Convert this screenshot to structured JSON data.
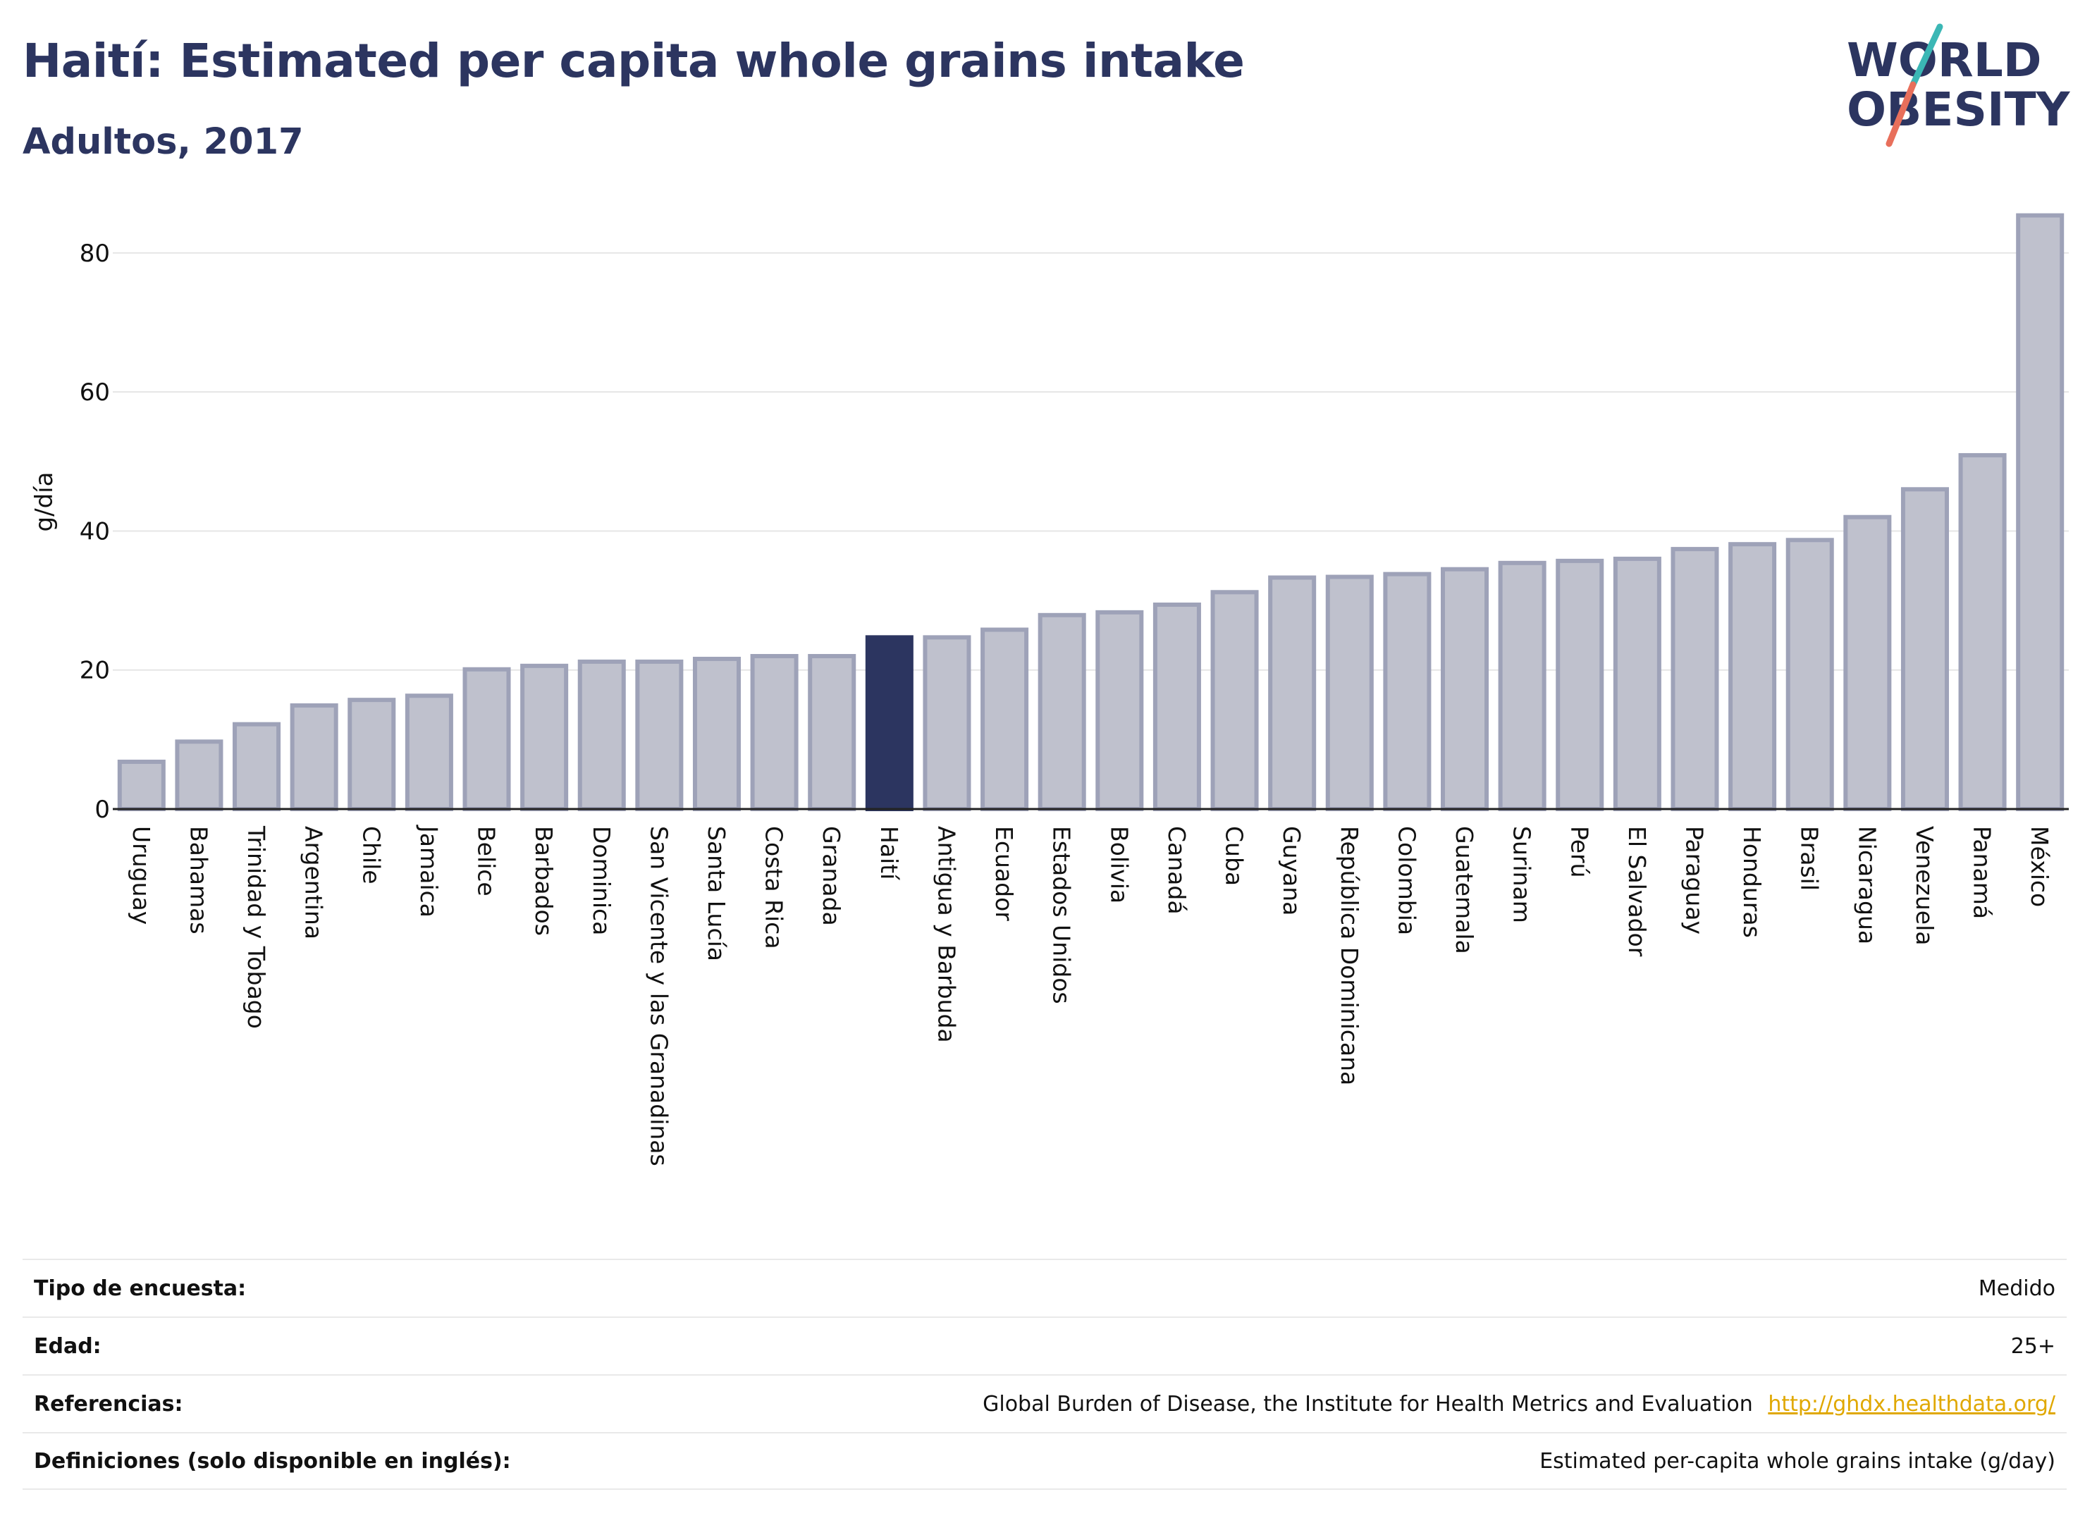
{
  "header": {
    "title": "Haití: Estimated per capita whole grains intake",
    "subtitle": "Adultos, 2017"
  },
  "logo": {
    "line1": "WORLD",
    "line2": "OBESITY"
  },
  "colors": {
    "highlight": "#2c3560",
    "bar_fill": "#bfc1cd",
    "bar_stroke": "#9ea2b8",
    "grid": "#e6e6e6",
    "logo_text": "#2c3560",
    "logo_teal": "#3bb7b5",
    "logo_coral": "#e86f5b"
  },
  "chart_data": {
    "type": "bar",
    "ylabel": "g/día",
    "ylim": [
      0,
      88
    ],
    "yticks": [
      0,
      20,
      40,
      60,
      80
    ],
    "grid": true,
    "highlight": "Haití",
    "categories": [
      "Uruguay",
      "Bahamas",
      "Trinidad y Tobago",
      "Argentina",
      "Chile",
      "Jamaica",
      "Belice",
      "Barbados",
      "Dominica",
      "San Vicente y las Granadinas",
      "Santa Lucía",
      "Costa Rica",
      "Granada",
      "Haití",
      "Antigua y Barbuda",
      "Ecuador",
      "Estados Unidos",
      "Bolivia",
      "Canadá",
      "Cuba",
      "Guyana",
      "República Dominicana",
      "Colombia",
      "Guatemala",
      "Surinam",
      "Perú",
      "El Salvador",
      "Paraguay",
      "Honduras",
      "Brasil",
      "Nicaragua",
      "Venezuela",
      "Panamá",
      "México"
    ],
    "values": [
      6.8,
      9.7,
      12.2,
      14.9,
      15.7,
      16.3,
      20.1,
      20.6,
      21.2,
      21.2,
      21.6,
      22.0,
      22.0,
      24.7,
      24.7,
      25.8,
      27.9,
      28.3,
      29.4,
      31.2,
      33.3,
      33.4,
      33.8,
      34.5,
      35.4,
      35.7,
      36.0,
      37.4,
      38.1,
      38.7,
      42.0,
      46.0,
      50.9,
      85.4
    ]
  },
  "meta": [
    {
      "key": "Tipo de encuesta:",
      "value": "Medido"
    },
    {
      "key": "Edad:",
      "value": "25+"
    },
    {
      "key": "Referencias:",
      "value": "Global Burden of Disease, the Institute for Health Metrics and Evaluation",
      "link": "http://ghdx.healthdata.org/"
    },
    {
      "key": "Definiciones (solo disponible en inglés):",
      "value": "Estimated per-capita whole grains intake (g/day)"
    }
  ]
}
